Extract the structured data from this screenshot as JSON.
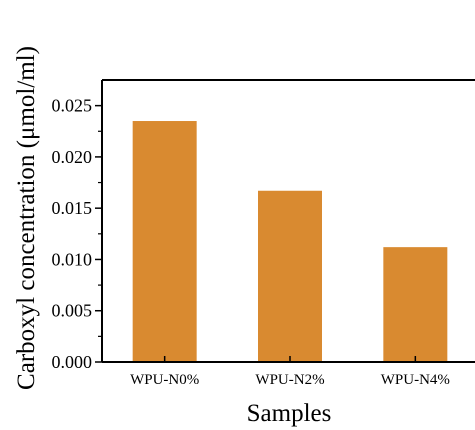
{
  "chart_data": {
    "type": "bar",
    "categories": [
      "WPU-N0%",
      "WPU-N2%",
      "WPU-N4%"
    ],
    "values": [
      0.0235,
      0.0167,
      0.0112
    ],
    "title": "",
    "xlabel": "Samples",
    "ylabel": "Carboxyl concentration (μmol/ml)",
    "ylim": [
      0,
      0.0275
    ],
    "yticks": [
      "0.000",
      "0.005",
      "0.010",
      "0.015",
      "0.020",
      "0.025"
    ],
    "bar_color": "#D98A30",
    "grid": false,
    "legend": "none"
  }
}
